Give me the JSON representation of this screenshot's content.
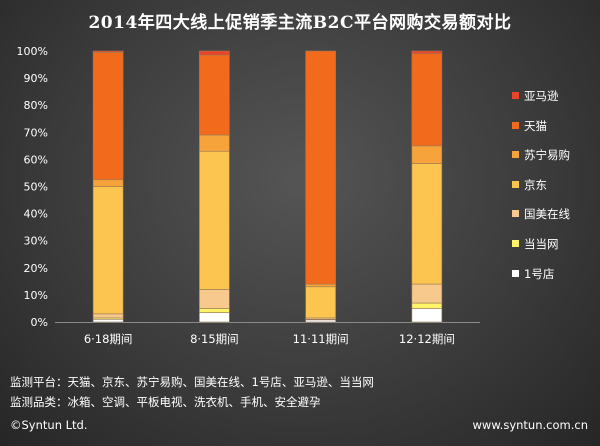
{
  "title": "2014年四大线上促销季主流B2C平台网购交易额对比",
  "footer": {
    "platforms": "监测平台：天猫、京东、苏宁易购、国美在线、1号店、亚马逊、当当网",
    "categories": "监测品类：冰箱、空调、平板电视、洗衣机、手机、安全避孕",
    "copyright": "©Syntun Ltd.",
    "website": "www.syntun.com.cn"
  },
  "chart_data": {
    "type": "bar",
    "stacked": true,
    "percent": true,
    "title": "2014年四大线上促销季主流B2C平台网购交易额对比",
    "categories": [
      "6·18期间",
      "8·15期间",
      "11·11期间",
      "12·12期间"
    ],
    "yticks": [
      "0%",
      "10%",
      "20%",
      "30%",
      "40%",
      "50%",
      "60%",
      "70%",
      "80%",
      "90%",
      "100%"
    ],
    "ylim": [
      0,
      100
    ],
    "grid": false,
    "legend_position": "right",
    "series": [
      {
        "name": "1号店",
        "color": "#ffffff",
        "values": [
          1.0,
          3.5,
          0.8,
          5.0
        ]
      },
      {
        "name": "当当网",
        "color": "#fff36a",
        "values": [
          0.5,
          1.5,
          0.2,
          2.0
        ]
      },
      {
        "name": "国美在线",
        "color": "#f7c98c",
        "values": [
          1.5,
          7.0,
          0.5,
          7.0
        ]
      },
      {
        "name": "京东",
        "color": "#fbc550",
        "values": [
          47.0,
          51.0,
          11.5,
          44.5
        ]
      },
      {
        "name": "苏宁易购",
        "color": "#f5a33a",
        "values": [
          2.5,
          6.0,
          1.0,
          6.5
        ]
      },
      {
        "name": "天猫",
        "color": "#f26a1b",
        "values": [
          47.0,
          29.5,
          86.0,
          34.0
        ]
      },
      {
        "name": "亚马逊",
        "color": "#e8442a",
        "values": [
          0.5,
          1.5,
          0.0,
          1.0
        ]
      }
    ]
  }
}
